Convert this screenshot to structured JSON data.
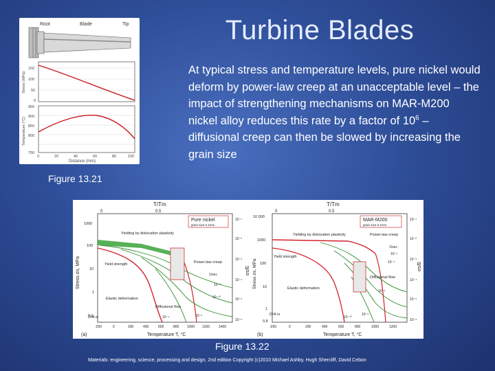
{
  "slide": {
    "title": "Turbine Blades",
    "body_text_before_sup": "At typical stress and temperature levels, pure nickel would deform by power-law creep at an unacceptable level – the impact of strengthening mechanisms on MAR-M200 nickel alloy reduces this rate by a factor of 10",
    "body_sup": "6",
    "body_text_after_sup": " – diffusional creep can then be slowed by increasing the grain size",
    "figure1_caption": "Figure 13.21",
    "figure2_caption": "Figure 13.22",
    "footer": "Materials: engineering, science, processing and design, 2nd edition Copyright (c)2010 Michael Ashby, Hugh Shercliff, David Cebon"
  },
  "figure1": {
    "blade_labels": {
      "root": "Root",
      "blade": "Blade",
      "tip": "Tip"
    },
    "stress_plot": {
      "ylabel": "Stress (MPa)",
      "yticks": [
        "150",
        "100",
        "50",
        "0"
      ]
    },
    "temperature_plot": {
      "ylabel": "Temperature (°C)",
      "yticks": [
        "950",
        "900",
        "850",
        "800",
        "750"
      ],
      "xlabel": "Distance (mm)",
      "xticks": [
        "0",
        "20",
        "40",
        "60",
        "80",
        "100"
      ]
    },
    "line_color": "#c8181c"
  },
  "figure2": {
    "left_map": {
      "top_axis_label": "T/Tm",
      "top_ticks": [
        "0",
        "0.5"
      ],
      "legend_title": "Pure nickel",
      "legend_sub": "grain size 0.1mm",
      "region_yield": "Yielding by dislocation plasticity",
      "region_yield_strength": "Yield strength",
      "region_power_law": "Power-law creep",
      "region_elastic": "Elastic deformation",
      "region_diffusional": "Diffusional flow",
      "rates": [
        "1/sec",
        "10⁻⁸",
        "10⁻¹⁰",
        "10⁻⁴",
        "10⁻⁶"
      ],
      "yticks": [
        "1000",
        "100",
        "10",
        "1",
        "0.1"
      ],
      "xticks": [
        "-200",
        "0",
        "200",
        "400",
        "600",
        "800",
        "1000",
        "1200",
        "1400"
      ],
      "right_ticks": [
        "10⁻¹",
        "10⁻²",
        "10⁻³",
        "10⁻⁴",
        "10⁻⁵",
        "10⁻⁶"
      ],
      "ylabel": "Stress σs, MPa",
      "right_label": "σs/E",
      "xlabel": "Temperature T, °C",
      "panel": "(a)",
      "dfa": "DFA or"
    },
    "right_map": {
      "top_axis_label": "T/Tm",
      "top_ticks": [
        "0",
        "0.5"
      ],
      "legend_title": "MAR-M200",
      "legend_sub": "grain size 0.1mm",
      "region_yield": "Yielding by dislocation plasticity",
      "region_yield_strength": "Yield strength",
      "region_power_law": "Power-law creep",
      "region_elastic": "Elastic deformation",
      "region_diffusional": "Diffusional flow",
      "rates": [
        "1/sec",
        "10⁻²",
        "10⁻⁴",
        "10⁻⁶",
        "10⁻⁸",
        "10⁻¹⁰"
      ],
      "yticks": [
        "10 000",
        "1000",
        "100",
        "10",
        "1",
        "0.8"
      ],
      "xticks": [
        "-200",
        "0",
        "200",
        "400",
        "600",
        "800",
        "1000",
        "1200"
      ],
      "right_ticks": [
        "10⁻¹",
        "10⁻²",
        "10⁻³",
        "10⁻⁴",
        "10⁻⁵",
        "10⁻⁶"
      ],
      "ylabel": "Stress σs, MPa",
      "right_label": "σs/E",
      "xlabel": "Temperature T, °C",
      "panel": "(b)",
      "dfa": "DFA or"
    },
    "colors": {
      "yield_band": "#3aa33a",
      "creep_lines": "#2e8b2e",
      "boundary": "#d4202a",
      "box": "#e8e8e8"
    }
  }
}
